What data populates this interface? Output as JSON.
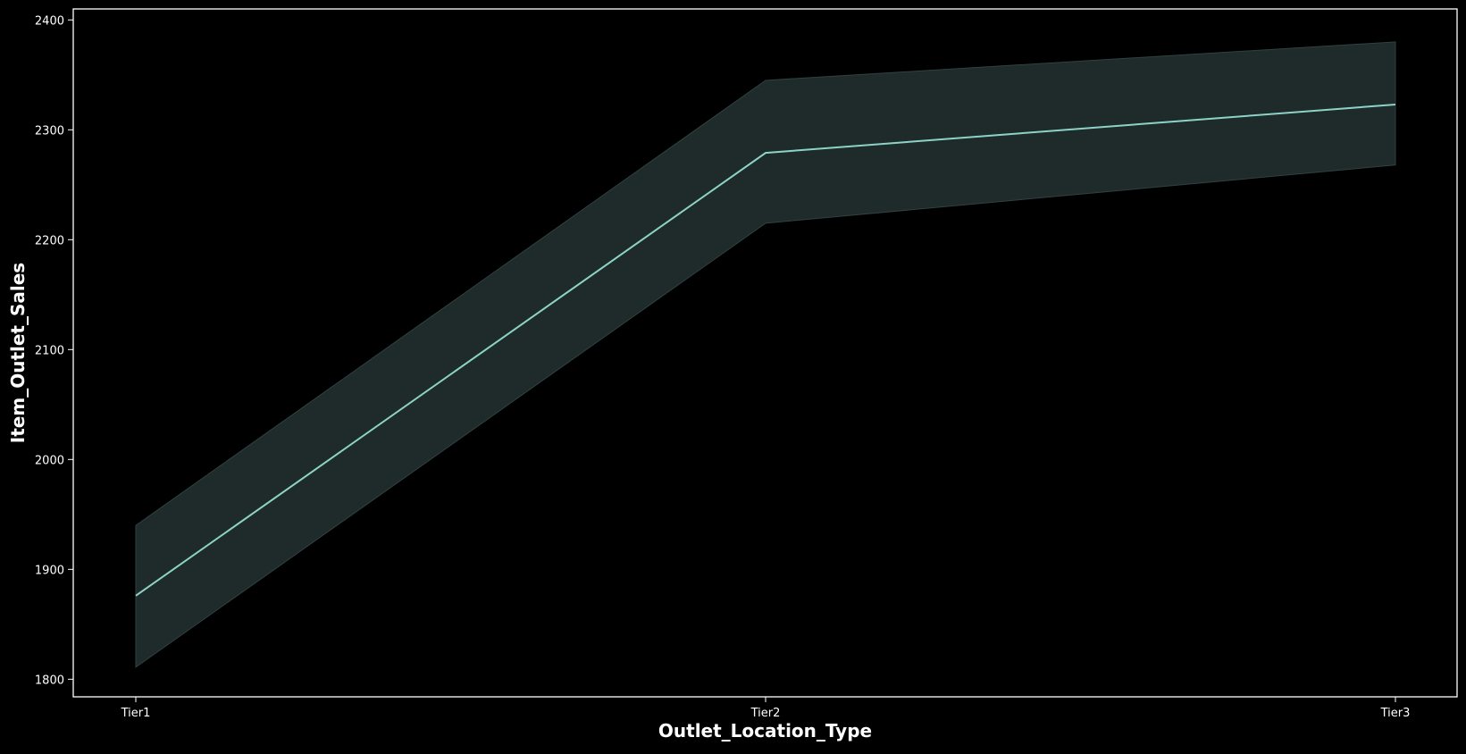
{
  "chart_data": {
    "type": "line",
    "xlabel": "Outlet_Location_Type",
    "ylabel": "Item_Outlet_Sales",
    "categories": [
      "Tier1",
      "Tier2",
      "Tier3"
    ],
    "series": [
      {
        "values": [
          1876,
          2279,
          2323
        ],
        "ci_lower": [
          1811,
          2215,
          2268
        ],
        "ci_upper": [
          1940,
          2345,
          2380
        ]
      }
    ],
    "ylim": [
      1784,
      2410
    ],
    "yticks": [
      1800,
      1900,
      2000,
      2100,
      2200,
      2300,
      2400
    ],
    "grid": false,
    "colors": {
      "background": "#000000",
      "line": "#8dd3c7",
      "band": "#1e2b2a",
      "band_edge": "#2f4240",
      "axes": "#ffffff",
      "text": "#ffffff"
    }
  }
}
